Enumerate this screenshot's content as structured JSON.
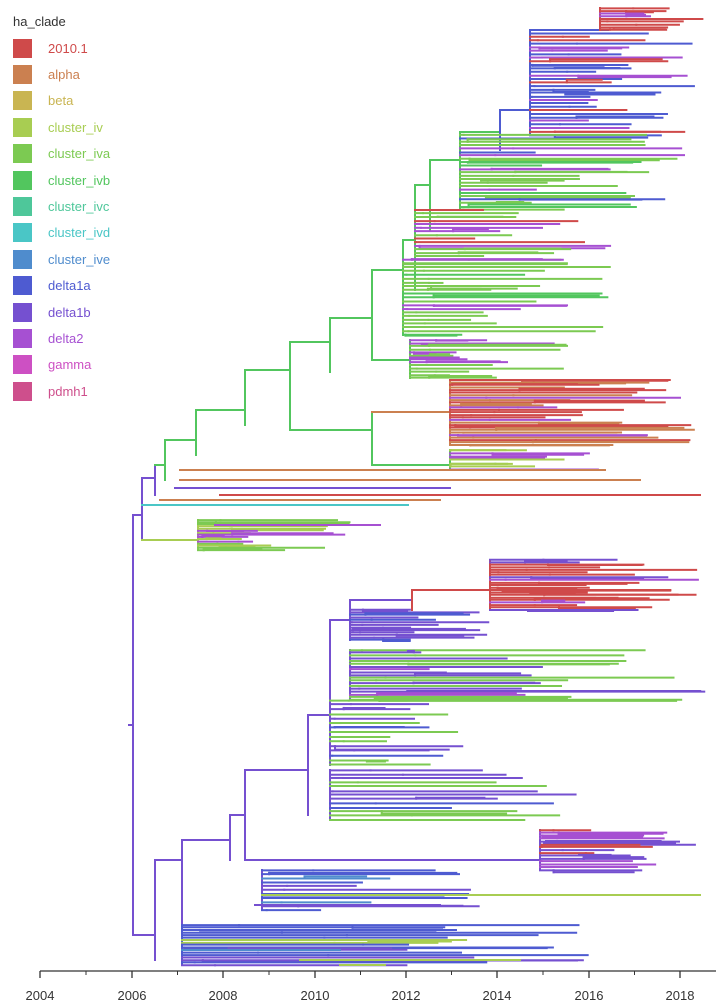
{
  "legend": {
    "title": "ha_clade",
    "items": [
      {
        "label": "2010.1",
        "color": "#cf4a4a"
      },
      {
        "label": "alpha",
        "color": "#cb8050"
      },
      {
        "label": "beta",
        "color": "#c9b552"
      },
      {
        "label": "cluster_iv",
        "color": "#a8cd52"
      },
      {
        "label": "cluster_iva",
        "color": "#7cca52"
      },
      {
        "label": "cluster_ivb",
        "color": "#52c65e"
      },
      {
        "label": "cluster_ivc",
        "color": "#4ec79a"
      },
      {
        "label": "cluster_ivd",
        "color": "#4ac6c6"
      },
      {
        "label": "cluster_ive",
        "color": "#4f8ccd"
      },
      {
        "label": "delta1a",
        "color": "#4e5bd1"
      },
      {
        "label": "delta1b",
        "color": "#7550d0"
      },
      {
        "label": "delta2",
        "color": "#a650d2"
      },
      {
        "label": "gamma",
        "color": "#cd50c3"
      },
      {
        "label": "pdmh1",
        "color": "#ce4f8c"
      }
    ]
  },
  "axis": {
    "ticks": [
      "2004",
      "2006",
      "2008",
      "2010",
      "2012",
      "2014",
      "2016",
      "2018"
    ]
  }
}
